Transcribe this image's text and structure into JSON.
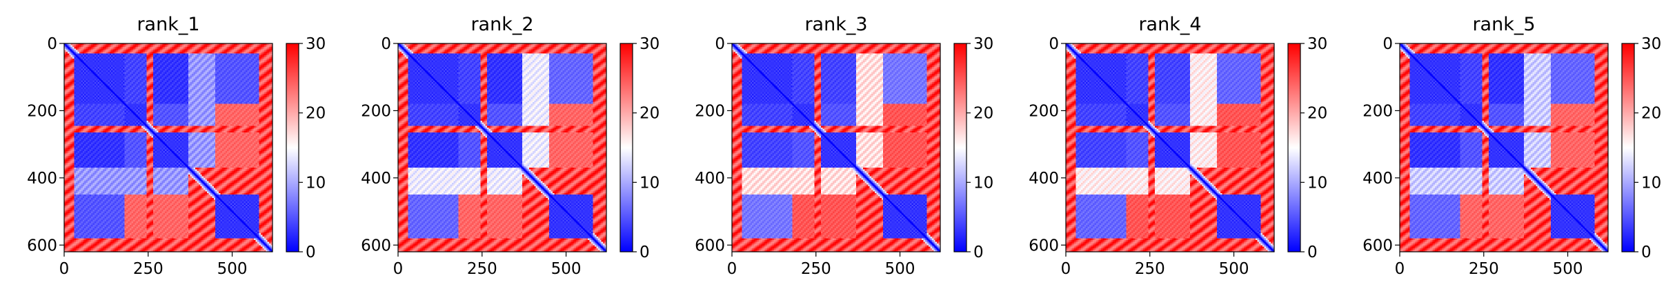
{
  "chart_data": [
    {
      "type": "heatmap",
      "title": "rank_1",
      "matrix_size": 620,
      "xlim": [
        0,
        620
      ],
      "ylim": [
        620,
        0
      ],
      "xticks": [
        0,
        250,
        500
      ],
      "yticks": [
        0,
        200,
        400,
        600
      ],
      "colorbar": {
        "min": 0,
        "max": 30,
        "ticks": [
          0,
          10,
          20,
          30
        ],
        "colormap": "bwr"
      },
      "domains": [
        [
          30,
          180
        ],
        [
          180,
          245
        ],
        [
          265,
          370
        ],
        [
          450,
          580
        ]
      ],
      "linkers": [
        [
          245,
          265
        ],
        [
          370,
          450
        ]
      ],
      "pair_distances": [
        [
          0,
          1,
          4
        ],
        [
          0,
          2,
          3
        ],
        [
          0,
          3,
          5
        ],
        [
          1,
          2,
          5
        ],
        [
          1,
          3,
          24
        ],
        [
          2,
          3,
          24
        ]
      ],
      "band_value": 9
    },
    {
      "type": "heatmap",
      "title": "rank_2",
      "matrix_size": 620,
      "xlim": [
        0,
        620
      ],
      "ylim": [
        620,
        0
      ],
      "xticks": [
        0,
        250,
        500
      ],
      "yticks": [
        0,
        200,
        400,
        600
      ],
      "colorbar": {
        "min": 0,
        "max": 30,
        "ticks": [
          0,
          10,
          20,
          30
        ],
        "colormap": "bwr"
      },
      "domains": [
        [
          30,
          180
        ],
        [
          180,
          245
        ],
        [
          265,
          370
        ],
        [
          450,
          580
        ]
      ],
      "linkers": [
        [
          245,
          265
        ],
        [
          370,
          450
        ]
      ],
      "pair_distances": [
        [
          0,
          1,
          4
        ],
        [
          0,
          2,
          3
        ],
        [
          0,
          3,
          6
        ],
        [
          1,
          2,
          5
        ],
        [
          1,
          3,
          24
        ],
        [
          2,
          3,
          24
        ]
      ],
      "band_value": 14
    },
    {
      "type": "heatmap",
      "title": "rank_3",
      "matrix_size": 620,
      "xlim": [
        0,
        620
      ],
      "ylim": [
        620,
        0
      ],
      "xticks": [
        0,
        250,
        500
      ],
      "yticks": [
        0,
        200,
        400,
        600
      ],
      "colorbar": {
        "min": 0,
        "max": 30,
        "ticks": [
          0,
          10,
          20,
          30
        ],
        "colormap": "bwr"
      },
      "domains": [
        [
          30,
          180
        ],
        [
          180,
          245
        ],
        [
          265,
          370
        ],
        [
          450,
          580
        ]
      ],
      "linkers": [
        [
          245,
          265
        ],
        [
          370,
          450
        ]
      ],
      "pair_distances": [
        [
          0,
          1,
          4
        ],
        [
          0,
          2,
          4
        ],
        [
          0,
          3,
          7
        ],
        [
          1,
          2,
          5
        ],
        [
          1,
          3,
          25
        ],
        [
          2,
          3,
          25
        ]
      ],
      "band_value": 17
    },
    {
      "type": "heatmap",
      "title": "rank_4",
      "matrix_size": 620,
      "xlim": [
        0,
        620
      ],
      "ylim": [
        620,
        0
      ],
      "xticks": [
        0,
        250,
        500
      ],
      "yticks": [
        0,
        200,
        400,
        600
      ],
      "colorbar": {
        "min": 0,
        "max": 30,
        "ticks": [
          0,
          10,
          20,
          30
        ],
        "colormap": "bwr"
      },
      "domains": [
        [
          30,
          180
        ],
        [
          180,
          245
        ],
        [
          265,
          370
        ],
        [
          450,
          580
        ]
      ],
      "linkers": [
        [
          245,
          265
        ],
        [
          370,
          450
        ]
      ],
      "pair_distances": [
        [
          0,
          1,
          4
        ],
        [
          0,
          2,
          4
        ],
        [
          0,
          3,
          6
        ],
        [
          1,
          2,
          5
        ],
        [
          1,
          3,
          25
        ],
        [
          2,
          3,
          25
        ]
      ],
      "band_value": 16
    },
    {
      "type": "heatmap",
      "title": "rank_5",
      "matrix_size": 620,
      "xlim": [
        0,
        620
      ],
      "ylim": [
        620,
        0
      ],
      "xticks": [
        0,
        250,
        500
      ],
      "yticks": [
        0,
        200,
        400,
        600
      ],
      "colorbar": {
        "min": 0,
        "max": 30,
        "ticks": [
          0,
          10,
          20,
          30
        ],
        "colormap": "bwr"
      },
      "domains": [
        [
          30,
          180
        ],
        [
          180,
          245
        ],
        [
          265,
          370
        ],
        [
          450,
          580
        ]
      ],
      "linkers": [
        [
          245,
          265
        ],
        [
          370,
          450
        ]
      ],
      "pair_distances": [
        [
          0,
          1,
          4
        ],
        [
          0,
          2,
          3
        ],
        [
          0,
          3,
          6
        ],
        [
          1,
          2,
          5
        ],
        [
          1,
          3,
          24
        ],
        [
          2,
          3,
          24
        ]
      ],
      "band_value": 12
    }
  ],
  "colors": {
    "low": "#0000ff",
    "mid": "#ffffff",
    "high": "#ff0000"
  }
}
